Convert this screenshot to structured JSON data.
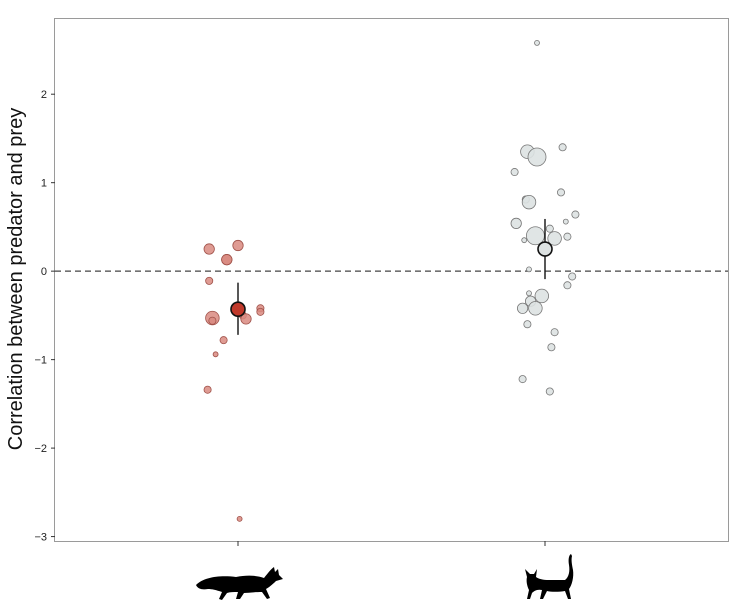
{
  "chart_data": {
    "type": "scatter",
    "ylabel": "Correlation between predator and prey",
    "xlabel": "",
    "ylim": [
      -3.05,
      2.85
    ],
    "yticks": [
      -3,
      -2,
      -1,
      0,
      1,
      2
    ],
    "ytick_labels": [
      "−3",
      "−2",
      "−1",
      "0",
      "1",
      "2"
    ],
    "grid": false,
    "reference_line": {
      "y": 0,
      "style": "dashed"
    },
    "categories": [
      "fox-silhouette",
      "cat-silhouette"
    ],
    "series": [
      {
        "category": "fox-silhouette",
        "color": "#d98a80",
        "summary_color": "#c0392b",
        "mean": -0.43,
        "ci": [
          -0.72,
          -0.13
        ],
        "points": [
          {
            "x": -0.18,
            "y": 0.25,
            "s": 2
          },
          {
            "x": -0.07,
            "y": 0.13,
            "s": 2
          },
          {
            "x": -0.07,
            "y": 0.13,
            "s": 2
          },
          {
            "x": 0.0,
            "y": 0.29,
            "s": 2
          },
          {
            "x": -0.18,
            "y": -0.11,
            "s": 1
          },
          {
            "x": -0.16,
            "y": -0.53,
            "s": 3
          },
          {
            "x": -0.16,
            "y": -0.56,
            "s": 1
          },
          {
            "x": 0.03,
            "y": -0.5,
            "s": 1
          },
          {
            "x": 0.05,
            "y": -0.54,
            "s": 2
          },
          {
            "x": 0.14,
            "y": -0.42,
            "s": 1
          },
          {
            "x": 0.14,
            "y": -0.46,
            "s": 1
          },
          {
            "x": -0.09,
            "y": -0.78,
            "s": 1
          },
          {
            "x": -0.14,
            "y": -0.94,
            "s": 0
          },
          {
            "x": -0.19,
            "y": -1.34,
            "s": 1
          },
          {
            "x": 0.01,
            "y": -2.8,
            "s": 0
          }
        ]
      },
      {
        "category": "cat-silhouette",
        "color": "#dde2e2",
        "summary_color": "#dde2e2",
        "mean": 0.25,
        "ci": [
          -0.09,
          0.59
        ],
        "points": [
          {
            "x": -0.05,
            "y": 2.58,
            "s": 0
          },
          {
            "x": -0.11,
            "y": 1.35,
            "s": 3
          },
          {
            "x": -0.05,
            "y": 1.29,
            "s": 4
          },
          {
            "x": 0.11,
            "y": 1.4,
            "s": 1
          },
          {
            "x": -0.19,
            "y": 1.12,
            "s": 1
          },
          {
            "x": 0.1,
            "y": 0.89,
            "s": 1
          },
          {
            "x": -0.12,
            "y": 0.81,
            "s": 1
          },
          {
            "x": -0.1,
            "y": 0.78,
            "s": 3
          },
          {
            "x": 0.19,
            "y": 0.64,
            "s": 1
          },
          {
            "x": 0.13,
            "y": 0.56,
            "s": 0
          },
          {
            "x": -0.18,
            "y": 0.54,
            "s": 2
          },
          {
            "x": 0.03,
            "y": 0.48,
            "s": 1
          },
          {
            "x": -0.06,
            "y": 0.4,
            "s": 4
          },
          {
            "x": 0.06,
            "y": 0.37,
            "s": 3
          },
          {
            "x": 0.14,
            "y": 0.39,
            "s": 1
          },
          {
            "x": -0.13,
            "y": 0.35,
            "s": 0
          },
          {
            "x": -0.1,
            "y": 0.02,
            "s": 0
          },
          {
            "x": 0.17,
            "y": -0.06,
            "s": 1
          },
          {
            "x": 0.14,
            "y": -0.16,
            "s": 1
          },
          {
            "x": -0.1,
            "y": -0.25,
            "s": 0
          },
          {
            "x": -0.02,
            "y": -0.28,
            "s": 3
          },
          {
            "x": -0.09,
            "y": -0.34,
            "s": 2
          },
          {
            "x": -0.14,
            "y": -0.42,
            "s": 2
          },
          {
            "x": -0.06,
            "y": -0.42,
            "s": 3
          },
          {
            "x": -0.11,
            "y": -0.6,
            "s": 1
          },
          {
            "x": 0.06,
            "y": -0.69,
            "s": 1
          },
          {
            "x": 0.04,
            "y": -0.86,
            "s": 1
          },
          {
            "x": -0.14,
            "y": -1.22,
            "s": 1
          },
          {
            "x": 0.03,
            "y": -1.36,
            "s": 1
          }
        ]
      }
    ]
  }
}
